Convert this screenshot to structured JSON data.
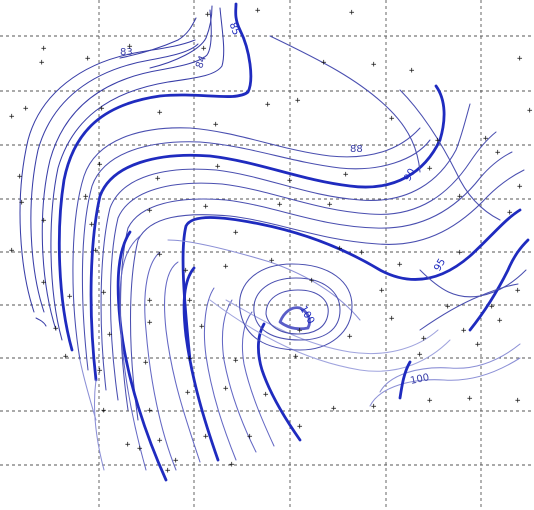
{
  "map": {
    "contour_labels": [
      "83",
      "84",
      "85",
      "88",
      "90",
      "95",
      "100",
      "100"
    ],
    "colors": {
      "contour_dark": "#1f2bbf",
      "contour_mid": "#3a3fa8",
      "contour_light": "#8c90d6",
      "grid": "#555555",
      "sample_point": "#111111"
    },
    "gridlines": {
      "vertical_count": 5,
      "horizontal_count": 9,
      "style": "dashed"
    },
    "sample_point_marker": "+"
  }
}
